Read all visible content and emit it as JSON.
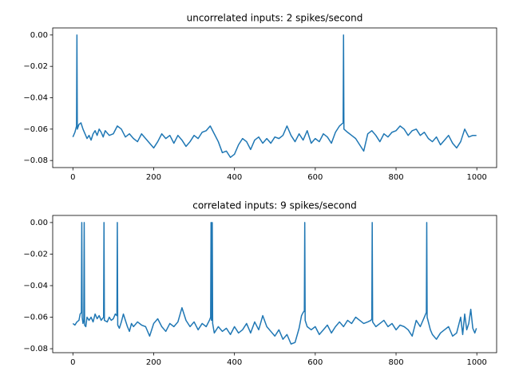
{
  "chart_data": [
    {
      "type": "line",
      "title": "uncorrelated inputs: 2 spikes/second",
      "x": [
        0,
        5,
        9,
        10,
        11,
        15,
        20,
        25,
        30,
        35,
        40,
        45,
        50,
        55,
        60,
        65,
        70,
        75,
        80,
        90,
        100,
        110,
        120,
        130,
        140,
        150,
        160,
        170,
        180,
        190,
        200,
        210,
        220,
        230,
        240,
        250,
        260,
        270,
        280,
        290,
        300,
        310,
        320,
        330,
        340,
        350,
        360,
        370,
        380,
        390,
        400,
        410,
        420,
        430,
        440,
        450,
        460,
        470,
        480,
        490,
        500,
        510,
        520,
        530,
        540,
        550,
        560,
        570,
        580,
        590,
        600,
        610,
        620,
        630,
        640,
        650,
        660,
        669,
        670,
        671,
        680,
        690,
        700,
        710,
        720,
        730,
        740,
        750,
        760,
        770,
        780,
        790,
        800,
        810,
        820,
        830,
        840,
        850,
        860,
        870,
        880,
        890,
        900,
        910,
        920,
        930,
        940,
        950,
        960,
        970,
        980,
        990,
        999
      ],
      "series": [
        {
          "color": "#1f77b4",
          "values": [
            -0.065,
            -0.062,
            -0.058,
            0.0,
            -0.06,
            -0.057,
            -0.056,
            -0.06,
            -0.063,
            -0.066,
            -0.064,
            -0.067,
            -0.063,
            -0.061,
            -0.064,
            -0.06,
            -0.062,
            -0.065,
            -0.061,
            -0.064,
            -0.063,
            -0.058,
            -0.06,
            -0.065,
            -0.063,
            -0.066,
            -0.068,
            -0.063,
            -0.066,
            -0.069,
            -0.072,
            -0.068,
            -0.063,
            -0.066,
            -0.064,
            -0.069,
            -0.064,
            -0.067,
            -0.071,
            -0.068,
            -0.064,
            -0.066,
            -0.062,
            -0.061,
            -0.058,
            -0.063,
            -0.068,
            -0.075,
            -0.074,
            -0.078,
            -0.076,
            -0.07,
            -0.066,
            -0.068,
            -0.073,
            -0.067,
            -0.065,
            -0.069,
            -0.066,
            -0.069,
            -0.065,
            -0.066,
            -0.064,
            -0.058,
            -0.064,
            -0.068,
            -0.063,
            -0.067,
            -0.061,
            -0.069,
            -0.066,
            -0.068,
            -0.063,
            -0.065,
            -0.069,
            -0.062,
            -0.058,
            -0.056,
            0.0,
            -0.06,
            -0.062,
            -0.064,
            -0.066,
            -0.07,
            -0.074,
            -0.063,
            -0.061,
            -0.064,
            -0.068,
            -0.063,
            -0.065,
            -0.062,
            -0.061,
            -0.058,
            -0.06,
            -0.064,
            -0.061,
            -0.06,
            -0.064,
            -0.062,
            -0.066,
            -0.068,
            -0.065,
            -0.07,
            -0.067,
            -0.064,
            -0.069,
            -0.072,
            -0.068,
            -0.06,
            -0.065,
            -0.064,
            -0.064
          ]
        }
      ],
      "xlim": [
        -50,
        1049
      ],
      "xticks": [
        0,
        200,
        400,
        600,
        800,
        1000
      ],
      "ylim": [
        -0.0845,
        0.0045
      ],
      "yticks": [
        {
          "value": 0,
          "label": "0.00"
        },
        {
          "value": -0.02,
          "label": "−0.02"
        },
        {
          "value": -0.04,
          "label": "−0.04"
        },
        {
          "value": -0.06,
          "label": "−0.06"
        },
        {
          "value": -0.08,
          "label": "−0.08"
        }
      ]
    },
    {
      "type": "line",
      "title": "correlated inputs: 9 spikes/second",
      "x": [
        0,
        5,
        10,
        15,
        18,
        21,
        22,
        23,
        25,
        27,
        28,
        29,
        32,
        35,
        40,
        45,
        50,
        55,
        60,
        65,
        70,
        76,
        77,
        78,
        85,
        90,
        95,
        100,
        105,
        109,
        110,
        111,
        115,
        120,
        125,
        130,
        135,
        140,
        145,
        150,
        160,
        170,
        180,
        190,
        200,
        210,
        220,
        230,
        240,
        250,
        260,
        270,
        280,
        290,
        300,
        310,
        320,
        330,
        338,
        341,
        342,
        343,
        344,
        345,
        346,
        350,
        360,
        370,
        380,
        390,
        400,
        410,
        420,
        430,
        440,
        450,
        460,
        470,
        480,
        490,
        500,
        510,
        520,
        530,
        540,
        550,
        560,
        566,
        570,
        573,
        574,
        575,
        580,
        590,
        600,
        610,
        620,
        630,
        640,
        650,
        660,
        670,
        680,
        690,
        700,
        710,
        720,
        730,
        738,
        740,
        741,
        742,
        750,
        760,
        770,
        780,
        790,
        800,
        810,
        820,
        830,
        840,
        850,
        860,
        870,
        875,
        876,
        877,
        885,
        890,
        900,
        910,
        920,
        930,
        940,
        950,
        960,
        965,
        970,
        975,
        980,
        985,
        990,
        995,
        999
      ],
      "series": [
        {
          "color": "#1f77b4",
          "values": [
            -0.064,
            -0.065,
            -0.063,
            -0.062,
            -0.058,
            -0.057,
            0.0,
            -0.06,
            -0.064,
            -0.062,
            0.0,
            -0.065,
            -0.066,
            -0.06,
            -0.062,
            -0.06,
            -0.063,
            -0.058,
            -0.061,
            -0.059,
            -0.062,
            -0.06,
            0.0,
            -0.062,
            -0.063,
            -0.06,
            -0.062,
            -0.061,
            -0.058,
            -0.059,
            0.0,
            -0.065,
            -0.067,
            -0.063,
            -0.058,
            -0.062,
            -0.066,
            -0.069,
            -0.064,
            -0.066,
            -0.063,
            -0.065,
            -0.066,
            -0.072,
            -0.064,
            -0.061,
            -0.066,
            -0.069,
            -0.064,
            -0.066,
            -0.063,
            -0.054,
            -0.062,
            -0.066,
            -0.063,
            -0.068,
            -0.064,
            -0.066,
            -0.062,
            -0.06,
            0.0,
            -0.062,
            -0.061,
            0.0,
            -0.064,
            -0.07,
            -0.066,
            -0.069,
            -0.067,
            -0.071,
            -0.066,
            -0.07,
            -0.068,
            -0.064,
            -0.07,
            -0.063,
            -0.068,
            -0.059,
            -0.066,
            -0.069,
            -0.072,
            -0.068,
            -0.074,
            -0.071,
            -0.077,
            -0.076,
            -0.067,
            -0.059,
            -0.057,
            -0.056,
            0.0,
            -0.062,
            -0.066,
            -0.068,
            -0.066,
            -0.071,
            -0.068,
            -0.065,
            -0.07,
            -0.066,
            -0.063,
            -0.066,
            -0.062,
            -0.064,
            -0.06,
            -0.062,
            -0.064,
            -0.063,
            -0.062,
            -0.061,
            0.0,
            -0.063,
            -0.066,
            -0.064,
            -0.062,
            -0.066,
            -0.064,
            -0.068,
            -0.065,
            -0.066,
            -0.068,
            -0.072,
            -0.062,
            -0.066,
            -0.06,
            -0.057,
            0.0,
            -0.06,
            -0.068,
            -0.071,
            -0.074,
            -0.07,
            -0.068,
            -0.066,
            -0.072,
            -0.07,
            -0.06,
            -0.071,
            -0.058,
            -0.068,
            -0.064,
            -0.055,
            -0.067,
            -0.07,
            -0.067
          ]
        }
      ],
      "xlim": [
        -50,
        1049
      ],
      "xticks": [
        0,
        200,
        400,
        600,
        800,
        1000
      ],
      "ylim": [
        -0.0825,
        0.0045
      ],
      "yticks": [
        {
          "value": 0,
          "label": "0.00"
        },
        {
          "value": -0.02,
          "label": "−0.02"
        },
        {
          "value": -0.04,
          "label": "−0.04"
        },
        {
          "value": -0.06,
          "label": "−0.06"
        },
        {
          "value": -0.08,
          "label": "−0.08"
        }
      ]
    }
  ]
}
